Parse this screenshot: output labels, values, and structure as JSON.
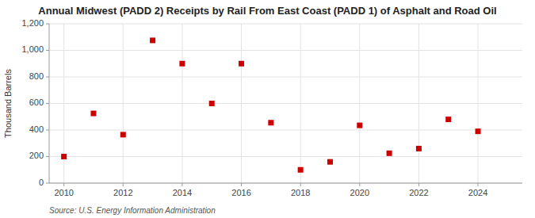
{
  "chart_data": {
    "type": "scatter",
    "title": "Annual Midwest (PADD 2) Receipts by Rail From East Coast (PADD 1) of Asphalt and Road Oil",
    "ylabel": "Thousand Barrels",
    "source": "Source: U.S. Energy Information Administration",
    "x": [
      2010,
      2011,
      2012,
      2013,
      2014,
      2015,
      2016,
      2017,
      2018,
      2019,
      2020,
      2021,
      2022,
      2023,
      2024
    ],
    "values": [
      200,
      525,
      365,
      1075,
      900,
      600,
      900,
      455,
      100,
      160,
      435,
      225,
      260,
      480,
      390
    ],
    "color": "#cc0000",
    "marker": "square",
    "xlim": [
      2009.5,
      2025.5
    ],
    "ylim": [
      0,
      1200
    ],
    "xticks": [
      2010,
      2012,
      2014,
      2016,
      2018,
      2020,
      2022,
      2024
    ],
    "yticks": [
      0,
      200,
      400,
      600,
      800,
      {
        "value": 1000,
        "label": "1,000"
      },
      {
        "value": 1200,
        "label": "1,200"
      }
    ],
    "grid": true
  }
}
